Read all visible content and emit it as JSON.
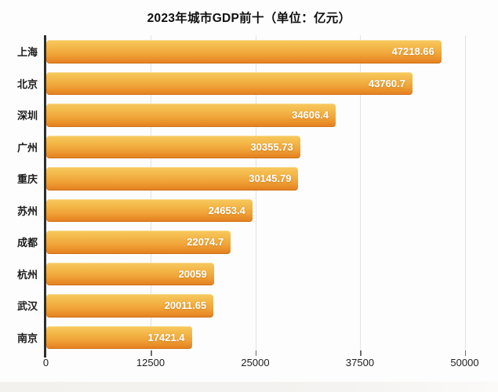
{
  "page": {
    "background": "#fdfdfd",
    "footer_strip_color": "#f3f1ee"
  },
  "chart_data": {
    "type": "bar",
    "orientation": "horizontal",
    "title": "2023年城市GDP前十（单位：亿元）",
    "unit": "亿元",
    "categories": [
      "上海",
      "北京",
      "深圳",
      "广州",
      "重庆",
      "苏州",
      "成都",
      "杭州",
      "武汉",
      "南京"
    ],
    "values": [
      47218.66,
      43760.7,
      34606.4,
      30355.73,
      30145.79,
      24653.4,
      22074.7,
      20059,
      20011.65,
      17421.4
    ],
    "value_labels": [
      "47218.66",
      "43760.7",
      "34606.4",
      "30355.73",
      "30145.79",
      "24653.4",
      "22074.7",
      "20059",
      "20011.65",
      "17421.4"
    ],
    "xlim": [
      0,
      50000
    ],
    "x_ticks": [
      "0",
      "12500",
      "25000",
      "37500",
      "50000"
    ],
    "x_tick_values": [
      0,
      12500,
      25000,
      37500,
      50000
    ],
    "grid": true,
    "legend": false,
    "colors": {
      "bar_gradient_top": "#f7ca5e",
      "bar_gradient_upper": "#f4b84a",
      "bar_gradient_lower": "#efa035",
      "bar_gradient_bottom": "#e37d1e",
      "value_label": "#ffffff",
      "axis_line": "#2d2d2d",
      "gridline": "#e2e2e2",
      "tick_label": "#1e1e1e",
      "category_label": "#1b1b1b",
      "title": "#101010"
    }
  }
}
